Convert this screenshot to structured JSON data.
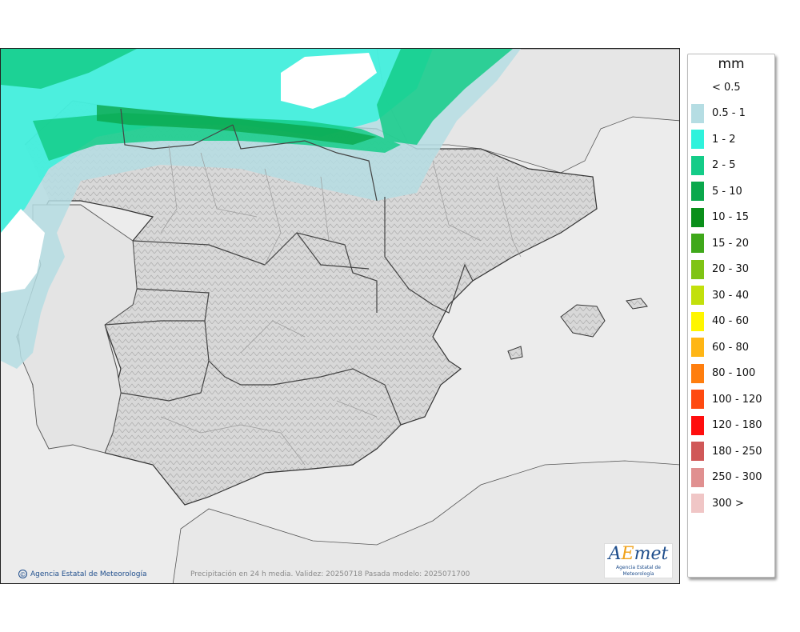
{
  "legend": {
    "title": "mm",
    "items": [
      {
        "label": "< 0.5",
        "color": ""
      },
      {
        "label": "0.5 - 1",
        "color": "#b5dde3"
      },
      {
        "label": "1 - 2",
        "color": "#2ff2dc"
      },
      {
        "label": "2 - 5",
        "color": "#14cc88"
      },
      {
        "label": "5 - 10",
        "color": "#0aa84c"
      },
      {
        "label": "10 - 15",
        "color": "#0a8f1a"
      },
      {
        "label": "15 - 20",
        "color": "#3fa81a"
      },
      {
        "label": "20 - 30",
        "color": "#7fc414"
      },
      {
        "label": "30 - 40",
        "color": "#c2e00c"
      },
      {
        "label": "40 - 60",
        "color": "#fff600"
      },
      {
        "label": "60 - 80",
        "color": "#ffb615"
      },
      {
        "label": "80 - 100",
        "color": "#ff7e0e"
      },
      {
        "label": "100 - 120",
        "color": "#ff4a10"
      },
      {
        "label": "120 - 180",
        "color": "#ff0e0e"
      },
      {
        "label": "180 - 250",
        "color": "#d05858"
      },
      {
        "label": "250 - 300",
        "color": "#e09090"
      },
      {
        "label": "300 >",
        "color": "#f0c6c6"
      }
    ]
  },
  "footer": {
    "credit": "Agencia Estatal de Meteorología",
    "caption": "Precipitación en 24 h media. Validez: 20250718 Pasada modelo: 2025071700",
    "logo_text": "AEmet",
    "logo_sub": "Agencia Estatal de Meteorología"
  },
  "colors": {
    "sea": "#ececec",
    "land": "#d6d6d6",
    "border": "#333333"
  }
}
